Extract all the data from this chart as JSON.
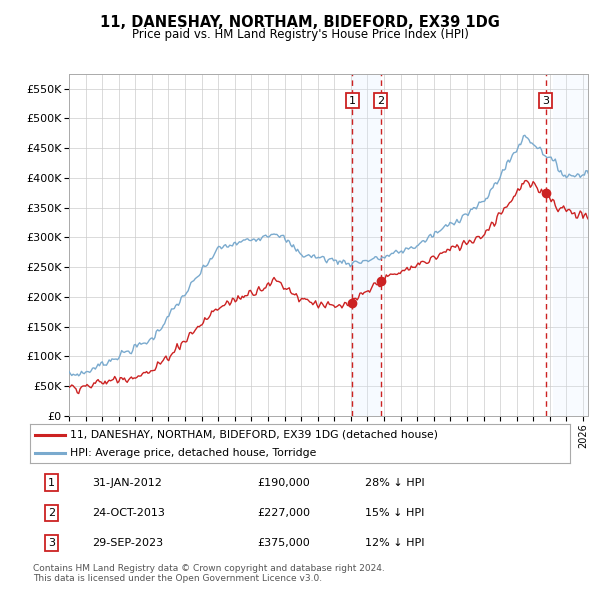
{
  "title": "11, DANESHAY, NORTHAM, BIDEFORD, EX39 1DG",
  "subtitle": "Price paid vs. HM Land Registry's House Price Index (HPI)",
  "ylabel_ticks": [
    "£0",
    "£50K",
    "£100K",
    "£150K",
    "£200K",
    "£250K",
    "£300K",
    "£350K",
    "£400K",
    "£450K",
    "£500K",
    "£550K"
  ],
  "ytick_values": [
    0,
    50000,
    100000,
    150000,
    200000,
    250000,
    300000,
    350000,
    400000,
    450000,
    500000,
    550000
  ],
  "ylim": [
    0,
    575000
  ],
  "xlim_start": 1995.0,
  "xlim_end": 2026.3,
  "legend_line1": "11, DANESHAY, NORTHAM, BIDEFORD, EX39 1DG (detached house)",
  "legend_line2": "HPI: Average price, detached house, Torridge",
  "sale1_date": "31-JAN-2012",
  "sale1_price": "£190,000",
  "sale1_hpi": "28% ↓ HPI",
  "sale2_date": "24-OCT-2013",
  "sale2_price": "£227,000",
  "sale2_hpi": "15% ↓ HPI",
  "sale3_date": "29-SEP-2023",
  "sale3_price": "£375,000",
  "sale3_hpi": "12% ↓ HPI",
  "footer": "Contains HM Land Registry data © Crown copyright and database right 2024.\nThis data is licensed under the Open Government Licence v3.0.",
  "red_line_color": "#cc2222",
  "blue_line_color": "#7aaace",
  "sale_marker_color": "#cc2222",
  "dashed_line_color": "#cc2222",
  "background_color": "#ffffff",
  "grid_color": "#cccccc",
  "shade_between_color": "#ddeeff",
  "hatch_region_color": "#ddeeff",
  "sale1_x": 2012.083,
  "sale2_x": 2013.792,
  "sale3_x": 2023.75,
  "sale1_y": 190000,
  "sale2_y": 227000,
  "sale3_y": 375000,
  "hatch_start": 2024.17
}
